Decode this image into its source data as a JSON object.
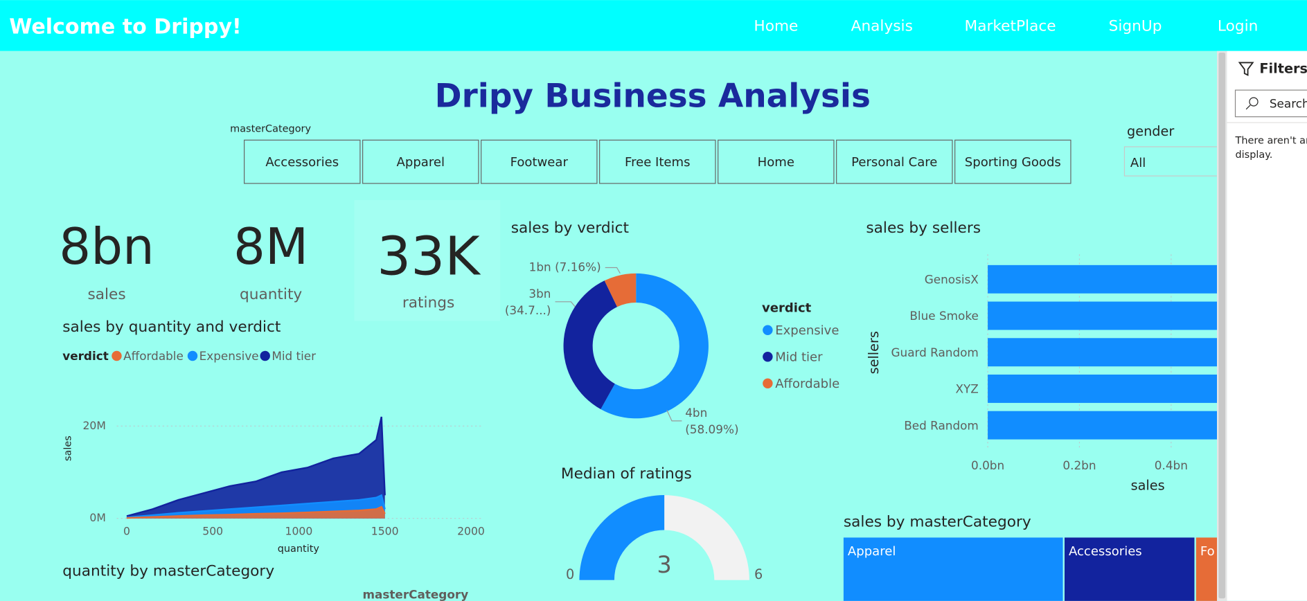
{
  "nav": {
    "brand": "Welcome to Drippy!",
    "links": [
      "Home",
      "Analysis",
      "MarketPlace",
      "SignUp",
      "Login"
    ]
  },
  "title": "Dripy Business Analysis",
  "category_slicer": {
    "label": "masterCategory",
    "options": [
      "Accessories",
      "Apparel",
      "Footwear",
      "Free Items",
      "Home",
      "Personal Care",
      "Sporting Goods"
    ]
  },
  "gender_slicer": {
    "label": "gender",
    "value": "All"
  },
  "kpis": [
    {
      "value": "8bn",
      "label": "sales"
    },
    {
      "value": "8M",
      "label": "quantity"
    },
    {
      "value": "33K",
      "label": "ratings"
    }
  ],
  "filters": {
    "title": "Filters",
    "search": "Search",
    "empty_message": [
      "There aren't any",
      "display."
    ]
  },
  "chart_data": [
    {
      "type": "line",
      "title": "sales by quantity and verdict",
      "legend_title": "verdict",
      "x_label": "quantity",
      "y_label": "sales",
      "x": [
        0,
        150,
        300,
        450,
        600,
        750,
        900,
        1050,
        1200,
        1350,
        1450,
        1480,
        1500
      ],
      "series": [
        {
          "name": "Affordable",
          "color": "#e66c37",
          "values": [
            0.1,
            0.3,
            0.5,
            0.7,
            0.8,
            1,
            1.1,
            1.3,
            1.5,
            1.7,
            2,
            2.5,
            1
          ]
        },
        {
          "name": "Expensive",
          "color": "#118dff",
          "values": [
            0.2,
            0.7,
            1.2,
            1.6,
            2,
            2.4,
            2.8,
            3.2,
            3.6,
            4,
            4.5,
            5,
            2
          ]
        },
        {
          "name": "Mid tier",
          "color": "#12239e",
          "values": [
            0.5,
            2,
            4,
            5.5,
            7,
            8,
            10,
            11,
            13,
            14,
            17,
            22,
            5
          ]
        }
      ],
      "xlim": [
        0,
        2000
      ],
      "xticks": [
        0,
        500,
        1000,
        1500,
        2000
      ],
      "ylim": [
        0,
        24
      ],
      "yticks": [
        {
          "value": 0,
          "label": "0M"
        },
        {
          "value": 20,
          "label": "20M"
        }
      ],
      "grid": true
    },
    {
      "type": "pie",
      "title": "sales by verdict",
      "legend_title": "verdict",
      "categories": [
        "Expensive",
        "Mid tier",
        "Affordable"
      ],
      "values": [
        58.09,
        34.75,
        7.16
      ],
      "value_labels": [
        [
          "4bn",
          "(58.09%)"
        ],
        [
          "3bn",
          "(34.7...)"
        ],
        [
          "1bn (7.16%)"
        ]
      ],
      "colors": [
        "#118dff",
        "#12239e",
        "#e66c37"
      ]
    },
    {
      "type": "bar",
      "orientation": "horizontal",
      "title": "sales by sellers",
      "x_label": "sales",
      "y_label": "sellers",
      "categories": [
        "GenosisX",
        "Blue Smoke",
        "Guard Random",
        "XYZ",
        "Bed Random"
      ],
      "values": [
        0.5,
        0.5,
        0.5,
        0.5,
        0.5
      ],
      "color": "#118dff",
      "xlim": [
        0,
        0.5
      ],
      "xticks": [
        {
          "value": 0,
          "label": "0.0bn"
        },
        {
          "value": 0.2,
          "label": "0.2bn"
        },
        {
          "value": 0.4,
          "label": "0.4bn"
        }
      ]
    },
    {
      "type": "gauge",
      "title": "Median of ratings",
      "value": 3,
      "min": 0,
      "max": 6,
      "color": "#118dff",
      "track_color": "#f2f2f2"
    },
    {
      "type": "treemap",
      "title": "sales by masterCategory",
      "categories": [
        "Apparel",
        "Accessories",
        "Fo"
      ],
      "values": [
        4.2,
        2.5,
        1.3
      ],
      "colors": [
        "#118dff",
        "#12239e",
        "#e66c37"
      ]
    },
    {
      "type": "bar",
      "title": "quantity by masterCategory",
      "legend_title": "masterCategory"
    }
  ]
}
